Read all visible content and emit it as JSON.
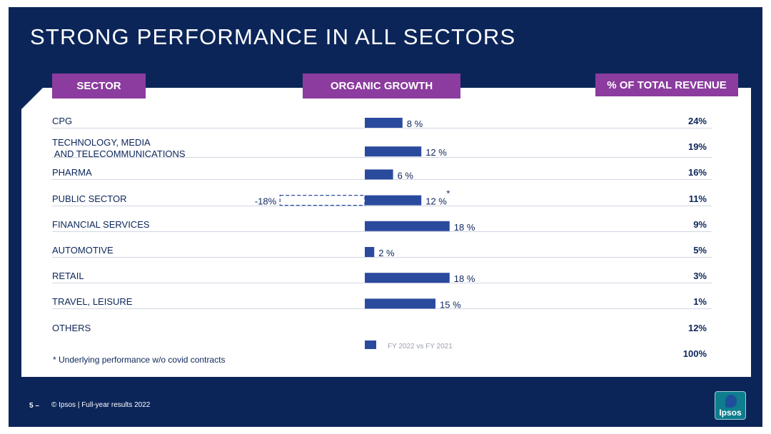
{
  "slide": {
    "title": "STRONG PERFORMANCE IN ALL SECTORS",
    "headers": {
      "sector": "SECTOR",
      "organic_growth": "ORGANIC GROWTH",
      "revenue": "% OF TOTAL REVENUE"
    },
    "footnote": "* Underlying performance w/o covid contracts",
    "footer": {
      "page": "5 –",
      "copyright": "© Ipsos | Full-year results 2022"
    },
    "logo_text": "Ipsos",
    "total_revenue": "100%"
  },
  "colors": {
    "background": "#0c2559",
    "header_purple": "#8b3c9e",
    "bar": "#2a4a9e",
    "text": "#0c2559"
  },
  "chart_data": {
    "type": "bar",
    "orientation": "horizontal",
    "legend": "FY 2022 vs FY 2021",
    "unit": "%",
    "rows": [
      {
        "sector_lines": [
          "CPG"
        ],
        "growth": 8,
        "growth_label": "8 %",
        "revenue": "24%"
      },
      {
        "sector_lines": [
          "TECHNOLOGY, MEDIA",
          " AND TELECOMMUNICATIONS"
        ],
        "growth": 12,
        "growth_label": "12 %",
        "revenue": "19%"
      },
      {
        "sector_lines": [
          "PHARMA"
        ],
        "growth": 6,
        "growth_label": "6 %",
        "revenue": "16%"
      },
      {
        "sector_lines": [
          "PUBLIC SECTOR"
        ],
        "growth": 12,
        "growth_label": "12 %",
        "revenue": "11%",
        "asterisk": "*",
        "reported_growth": -18,
        "reported_label": "-18%"
      },
      {
        "sector_lines": [
          "FINANCIAL SERVICES"
        ],
        "growth": 18,
        "growth_label": "18 %",
        "revenue": "9%"
      },
      {
        "sector_lines": [
          "AUTOMOTIVE"
        ],
        "growth": 2,
        "growth_label": "2 %",
        "revenue": "5%"
      },
      {
        "sector_lines": [
          "RETAIL"
        ],
        "growth": 18,
        "growth_label": "18 %",
        "revenue": "3%"
      },
      {
        "sector_lines": [
          "TRAVEL, LEISURE"
        ],
        "growth": 15,
        "growth_label": "15 %",
        "revenue": "1%"
      },
      {
        "sector_lines": [
          "OTHERS"
        ],
        "growth": null,
        "growth_label": "",
        "revenue": "12%"
      }
    ]
  }
}
